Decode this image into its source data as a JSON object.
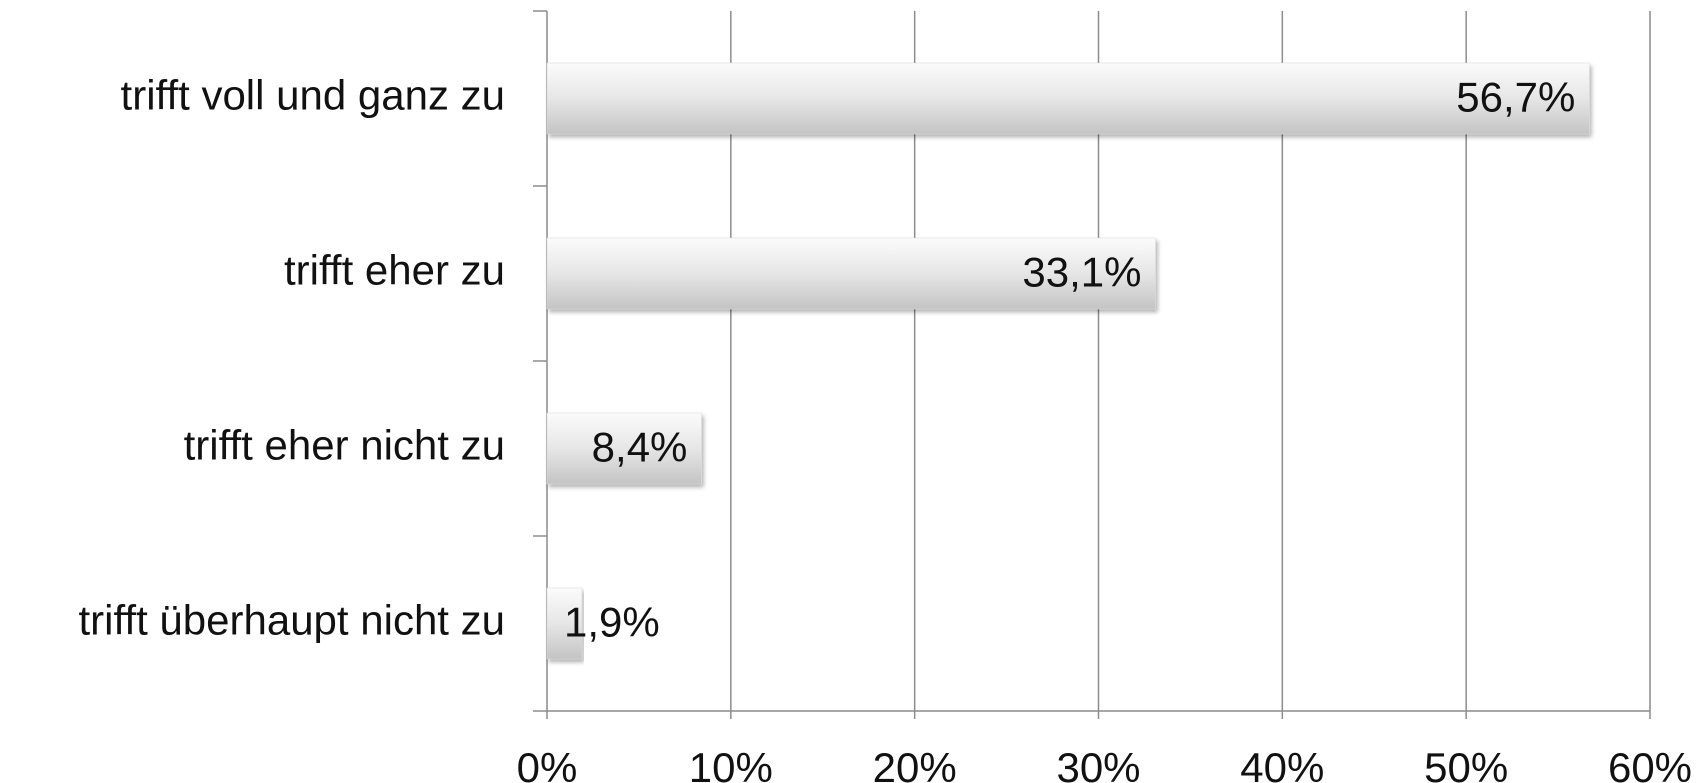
{
  "chart_data": {
    "type": "bar",
    "orientation": "horizontal",
    "categories": [
      "trifft voll und ganz zu",
      "trifft eher zu",
      "trifft eher nicht zu",
      "trifft überhaupt nicht zu"
    ],
    "values": [
      56.7,
      33.1,
      8.4,
      1.9
    ],
    "value_labels": [
      "56,7%",
      "33,1%",
      "8,4%",
      "1,9%"
    ],
    "color": "#d9d9d9",
    "xlim": [
      0,
      60
    ],
    "xticks": [
      {
        "value": 0,
        "label": "0%"
      },
      {
        "value": 10,
        "label": "10%"
      },
      {
        "value": 20,
        "label": "20%"
      },
      {
        "value": 30,
        "label": "30%"
      },
      {
        "value": 40,
        "label": "40%"
      },
      {
        "value": 50,
        "label": "50%"
      },
      {
        "value": 60,
        "label": "60%"
      }
    ],
    "grid": true
  }
}
